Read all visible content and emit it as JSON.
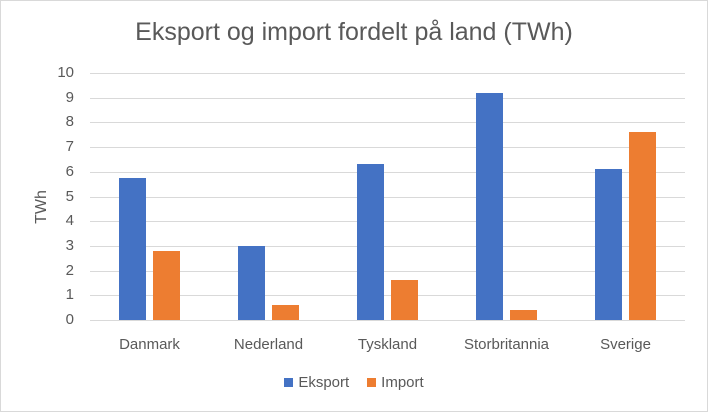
{
  "chart_data": {
    "type": "bar",
    "title": "Eksport og import fordelt på land (TWh)",
    "xlabel": "",
    "ylabel": "TWh",
    "ylim": [
      0,
      10
    ],
    "yticks": [
      "0",
      "1",
      "2",
      "3",
      "4",
      "5",
      "6",
      "7",
      "8",
      "9",
      "10"
    ],
    "grid": true,
    "legend_position": "bottom",
    "categories": [
      "Danmark",
      "Nederland",
      "Tyskland",
      "Storbritannia",
      "Sverige"
    ],
    "series": [
      {
        "name": "Eksport",
        "color": "#4472c4",
        "values": [
          5.75,
          3.0,
          6.3,
          9.2,
          6.1
        ]
      },
      {
        "name": "Import",
        "color": "#ed7d31",
        "values": [
          2.8,
          0.6,
          1.6,
          0.4,
          7.6
        ]
      }
    ]
  }
}
